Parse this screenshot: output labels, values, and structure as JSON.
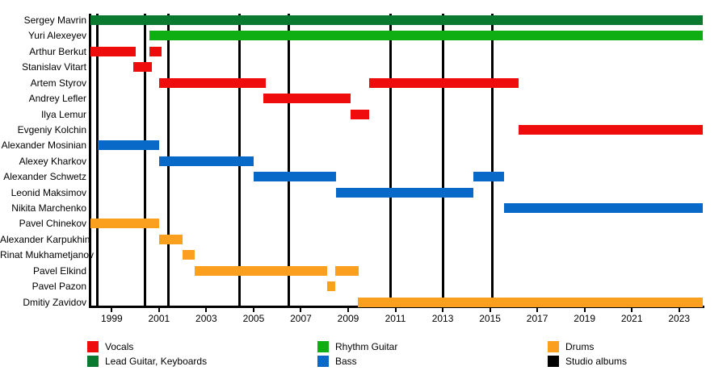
{
  "chart_data": {
    "type": "timeline-gantt",
    "x_axis": {
      "min": 1998.1,
      "max": 2024.0,
      "tick_years": [
        1999,
        2001,
        2003,
        2005,
        2007,
        2009,
        2011,
        2013,
        2015,
        2017,
        2019,
        2021,
        2023
      ]
    },
    "album_years": [
      1998.4,
      2000.4,
      2001.4,
      2004.4,
      2006.5,
      2010.8,
      2013.0,
      2015.1
    ],
    "members": [
      {
        "name": "Sergey Mavrin",
        "role": "lead_guitar_keyboards",
        "stints": [
          [
            1998.1,
            2024.0
          ]
        ]
      },
      {
        "name": "Yuri Alexeyev",
        "role": "rhythm_guitar",
        "stints": [
          [
            2000.6,
            2024.0
          ]
        ]
      },
      {
        "name": "Arthur Berkut",
        "role": "vocals",
        "stints": [
          [
            1998.1,
            2000.0
          ],
          [
            2000.6,
            2001.1
          ]
        ]
      },
      {
        "name": "Stanislav Vitart",
        "role": "vocals",
        "stints": [
          [
            1999.9,
            2000.7
          ]
        ]
      },
      {
        "name": "Artem Styrov",
        "role": "vocals",
        "stints": [
          [
            2001.0,
            2005.5
          ],
          [
            2009.9,
            2016.2
          ]
        ]
      },
      {
        "name": "Andrey Lefler",
        "role": "vocals",
        "stints": [
          [
            2005.4,
            2009.1
          ]
        ]
      },
      {
        "name": "Ilya Lemur",
        "role": "vocals",
        "stints": [
          [
            2009.1,
            2009.9
          ]
        ]
      },
      {
        "name": "Evgeniy Kolchin",
        "role": "vocals",
        "stints": [
          [
            2016.2,
            2024.0
          ]
        ]
      },
      {
        "name": "Alexander Mosinian",
        "role": "bass",
        "stints": [
          [
            1998.4,
            2001.0
          ]
        ]
      },
      {
        "name": "Alexey Kharkov",
        "role": "bass",
        "stints": [
          [
            2001.0,
            2005.0
          ]
        ]
      },
      {
        "name": "Alexander Schwetz",
        "role": "bass",
        "stints": [
          [
            2005.0,
            2008.5
          ],
          [
            2014.3,
            2015.6
          ]
        ]
      },
      {
        "name": "Leonid Maksimov",
        "role": "bass",
        "stints": [
          [
            2008.5,
            2014.3
          ]
        ]
      },
      {
        "name": "Nikita Marchenko",
        "role": "bass",
        "stints": [
          [
            2015.6,
            2024.0
          ]
        ]
      },
      {
        "name": "Pavel Chinekov",
        "role": "drums",
        "stints": [
          [
            1998.1,
            2001.0
          ]
        ]
      },
      {
        "name": "Alexander Karpukhin",
        "role": "drums",
        "stints": [
          [
            2001.0,
            2002.0
          ]
        ]
      },
      {
        "name": "Rinat Mukhametjanov",
        "role": "drums",
        "stints": [
          [
            2002.0,
            2002.5
          ]
        ]
      },
      {
        "name": "Pavel Elkind",
        "role": "drums",
        "stints": [
          [
            2002.5,
            2008.1
          ],
          [
            2008.45,
            2009.45
          ]
        ]
      },
      {
        "name": "Pavel Pazon",
        "role": "drums",
        "stints": [
          [
            2008.1,
            2008.45
          ]
        ]
      },
      {
        "name": "Dmitiy Zavidov",
        "role": "drums",
        "stints": [
          [
            2009.4,
            2024.0
          ]
        ]
      }
    ],
    "colors": {
      "vocals": "#ee0c0c",
      "lead_guitar_keyboards": "#0a7a30",
      "rhythm_guitar": "#0fae12",
      "bass": "#0869c8",
      "drums": "#faa01e",
      "studio_albums": "#000000"
    },
    "legend": [
      {
        "label": "Vocals",
        "color_key": "vocals",
        "col": 0,
        "row": 0
      },
      {
        "label": "Lead Guitar, Keyboards",
        "color_key": "lead_guitar_keyboards",
        "col": 0,
        "row": 1
      },
      {
        "label": "Rhythm Guitar",
        "color_key": "rhythm_guitar",
        "col": 1,
        "row": 0
      },
      {
        "label": "Bass",
        "color_key": "bass",
        "col": 1,
        "row": 1
      },
      {
        "label": "Drums",
        "color_key": "drums",
        "col": 2,
        "row": 0
      },
      {
        "label": "Studio albums",
        "color_key": "studio_albums",
        "col": 2,
        "row": 1
      }
    ],
    "legend_position": "bottom",
    "grid": "vertical-event-lines"
  }
}
